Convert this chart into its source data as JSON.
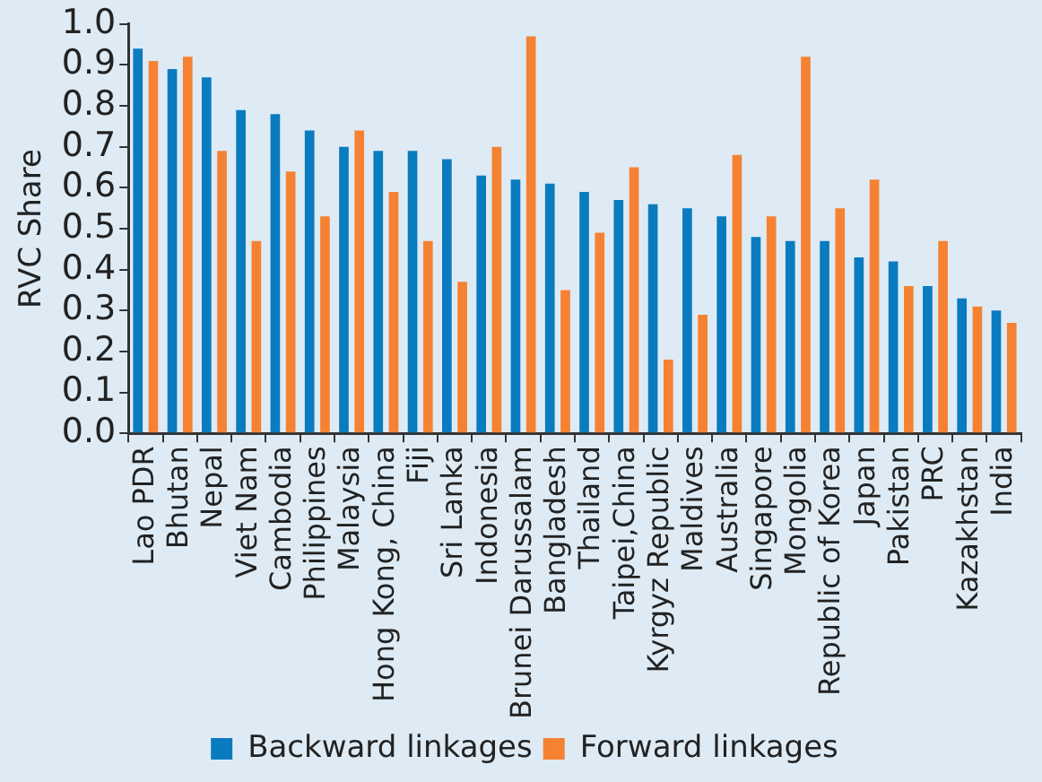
{
  "chart_data": {
    "type": "bar",
    "ylabel": "RVC Share",
    "categories": [
      "Lao PDR",
      "Bhutan",
      "Nepal",
      "Viet Nam",
      "Cambodia",
      "Philippines",
      "Malaysia",
      "Hong Kong, China",
      "Fiji",
      "Sri Lanka",
      "Indonesia",
      "Brunei Darussalam",
      "Bangladesh",
      "Thailand",
      "Taipei,China",
      "Kyrgyz Republic",
      "Maldives",
      "Australia",
      "Singapore",
      "Mongolia",
      "Republic of Korea",
      "Japan",
      "Pakistan",
      "PRC",
      "Kazakhstan",
      "India"
    ],
    "series": [
      {
        "name": "Backward linkages",
        "color": "#0a7bbf",
        "values": [
          0.94,
          0.89,
          0.87,
          0.79,
          0.78,
          0.74,
          0.7,
          0.69,
          0.69,
          0.67,
          0.63,
          0.62,
          0.61,
          0.59,
          0.57,
          0.56,
          0.55,
          0.53,
          0.48,
          0.47,
          0.47,
          0.43,
          0.42,
          0.36,
          0.33,
          0.3
        ]
      },
      {
        "name": "Forward linkages",
        "color": "#f58232",
        "values": [
          0.91,
          0.92,
          0.69,
          0.47,
          0.64,
          0.53,
          0.74,
          0.59,
          0.47,
          0.37,
          0.7,
          0.97,
          0.35,
          0.49,
          0.65,
          0.18,
          0.29,
          0.68,
          0.53,
          0.92,
          0.55,
          0.62,
          0.36,
          0.47,
          0.31,
          0.27
        ]
      }
    ],
    "ylim": [
      0,
      1
    ],
    "yticks": [
      {
        "value": 0,
        "label": "0.0"
      },
      {
        "value": 0.1,
        "label": "0.1"
      },
      {
        "value": 0.2,
        "label": "0.2"
      },
      {
        "value": 0.3,
        "label": "0.3"
      },
      {
        "value": 0.4,
        "label": "0.4"
      },
      {
        "value": 0.5,
        "label": "0.5"
      },
      {
        "value": 0.6,
        "label": "0.6"
      },
      {
        "value": 0.7,
        "label": "0.7"
      },
      {
        "value": 0.8,
        "label": "0.8"
      },
      {
        "value": 0.9,
        "label": "0.9"
      },
      {
        "value": 1,
        "label": "1.0"
      }
    ],
    "grid": false,
    "legend": "bottom"
  }
}
